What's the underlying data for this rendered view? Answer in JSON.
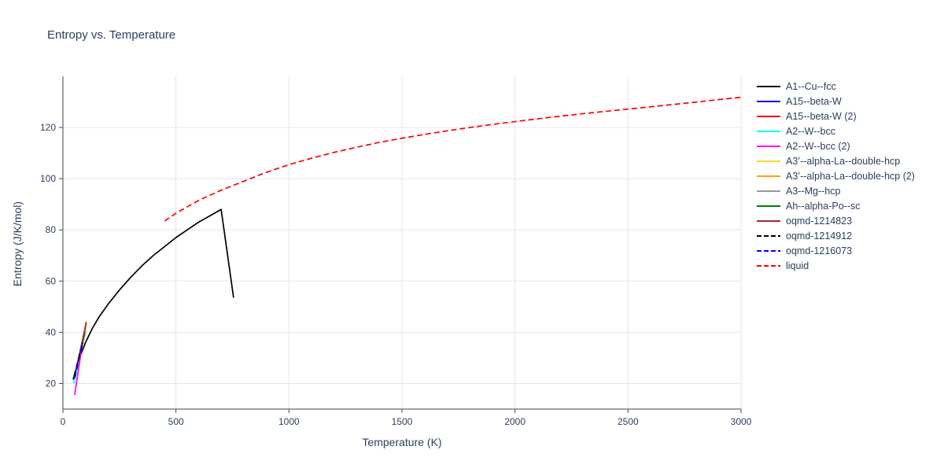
{
  "chart_data": {
    "type": "line",
    "title": "Entropy vs. Temperature",
    "xlabel": "Temperature (K)",
    "ylabel": "Entropy (J/K/mol)",
    "xlim": [
      0,
      3000
    ],
    "ylim": [
      10,
      140
    ],
    "xticks": [
      0,
      500,
      1000,
      1500,
      2000,
      2500,
      3000
    ],
    "yticks": [
      20,
      40,
      60,
      80,
      100,
      120
    ],
    "grid": true,
    "legend_position": "right",
    "colors": {
      "title_text": "#2a3f5f",
      "tick_text": "#2a3f5f",
      "gridline": "#e6e6e6",
      "axis_line": "#444444"
    },
    "series": [
      {
        "name": "A1--Cu--fcc",
        "color": "#000000",
        "dash": "solid",
        "x": [
          45,
          60,
          80,
          100,
          130,
          160,
          200,
          250,
          300,
          350,
          400,
          450,
          500,
          550,
          600,
          650,
          700,
          755
        ],
        "y": [
          21.5,
          26.5,
          31.5,
          36,
          41.5,
          46,
          51,
          56.5,
          61.5,
          66,
          70,
          73.5,
          77,
          80,
          83,
          85.5,
          88,
          53.5
        ]
      },
      {
        "name": "A15--beta-W",
        "color": "#0000ff",
        "dash": "solid",
        "x": [
          55,
          100
        ],
        "y": [
          24,
          40.5
        ]
      },
      {
        "name": "A15--beta-W (2)",
        "color": "#ff0000",
        "dash": "solid",
        "x": [
          60,
          103
        ],
        "y": [
          25,
          44
        ]
      },
      {
        "name": "A2--W--bcc",
        "color": "#00ffff",
        "dash": "solid",
        "x": [
          48,
          95
        ],
        "y": [
          20,
          38.5
        ]
      },
      {
        "name": "A2--W--bcc (2)",
        "color": "#ff00ff",
        "dash": "solid",
        "x": [
          52,
          92
        ],
        "y": [
          15.5,
          39
        ]
      },
      {
        "name": "A3’--alpha-La--double-hcp",
        "color": "#ffd42a",
        "dash": "solid",
        "x": [
          55,
          100
        ],
        "y": [
          24.5,
          41
        ]
      },
      {
        "name": "A3’--alpha-La--double-hcp (2)",
        "color": "#ffa500",
        "dash": "solid",
        "x": [
          57,
          101
        ],
        "y": [
          25.5,
          42
        ]
      },
      {
        "name": "A3--Mg--hcp",
        "color": "#999999",
        "dash": "solid",
        "x": [
          52,
          99
        ],
        "y": [
          23.5,
          40
        ]
      },
      {
        "name": "Ah--alpha-Po--sc",
        "color": "#008000",
        "dash": "solid",
        "x": [
          50,
          96
        ],
        "y": [
          22.5,
          39.5
        ]
      },
      {
        "name": "oqmd-1214823",
        "color": "#a52a2a",
        "dash": "solid",
        "x": [
          62,
          104
        ],
        "y": [
          27,
          44
        ]
      },
      {
        "name": "oqmd-1214912",
        "color": "#000000",
        "dash": "dash",
        "x": [
          50,
          85
        ],
        "y": [
          23,
          35
        ]
      },
      {
        "name": "oqmd-1216073",
        "color": "#0000ff",
        "dash": "dash",
        "x": [
          52,
          88
        ],
        "y": [
          22,
          36
        ]
      },
      {
        "name": "liquid",
        "color": "#ff0000",
        "dash": "dash",
        "x": [
          450,
          500,
          550,
          600,
          700,
          800,
          900,
          1000,
          1100,
          1200,
          1300,
          1400,
          1500,
          1600,
          1700,
          1800,
          1900,
          2000,
          2100,
          2200,
          2300,
          2400,
          2500,
          2600,
          2700,
          2800,
          2900,
          3000
        ],
        "y": [
          83.5,
          86.5,
          89,
          91.5,
          95.5,
          99,
          102.5,
          105.5,
          108,
          110.3,
          112.3,
          114.2,
          115.8,
          117.3,
          118.7,
          120,
          121.2,
          122.3,
          123.4,
          124.4,
          125.4,
          126.3,
          127.2,
          128.1,
          129,
          129.9,
          130.9,
          131.8
        ]
      }
    ]
  }
}
